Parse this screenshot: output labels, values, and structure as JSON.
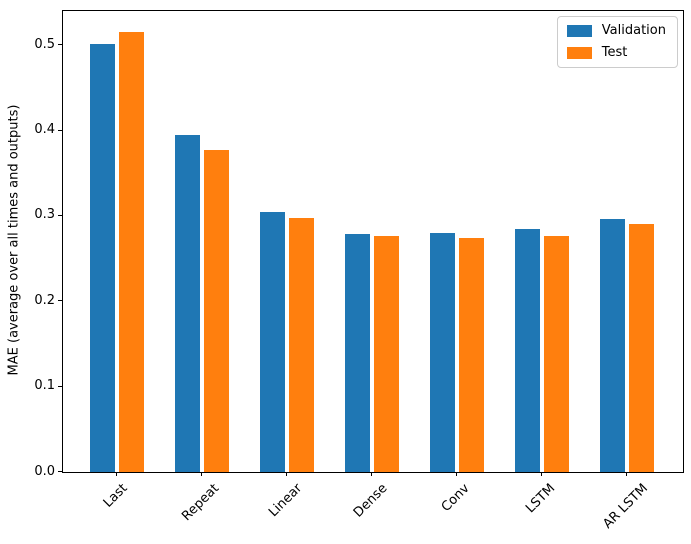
{
  "chart_data": {
    "type": "bar",
    "title": "",
    "xlabel": "",
    "ylabel": "MAE (average over all times and outputs)",
    "categories": [
      "Last",
      "Repeat",
      "Linear",
      "Dense",
      "Conv",
      "LSTM",
      "AR LSTM"
    ],
    "series": [
      {
        "name": "Validation",
        "color": "#1f77b4",
        "values": [
          0.501,
          0.395,
          0.305,
          0.279,
          0.28,
          0.285,
          0.297
        ]
      },
      {
        "name": "Test",
        "color": "#ff7f0e",
        "values": [
          0.515,
          0.377,
          0.298,
          0.276,
          0.274,
          0.276,
          0.291
        ]
      }
    ],
    "ylim": [
      0,
      0.54
    ],
    "yticks": [
      {
        "value": 0.0,
        "label": "0.0"
      },
      {
        "value": 0.1,
        "label": "0.1"
      },
      {
        "value": 0.2,
        "label": "0.2"
      },
      {
        "value": 0.3,
        "label": "0.3"
      },
      {
        "value": 0.4,
        "label": "0.4"
      },
      {
        "value": 0.5,
        "label": "0.5"
      }
    ],
    "x_tick_rotation_deg": 45,
    "grid": false,
    "legend_position": "upper right",
    "background_color": "#ffffff",
    "spine_color": "#000000"
  }
}
